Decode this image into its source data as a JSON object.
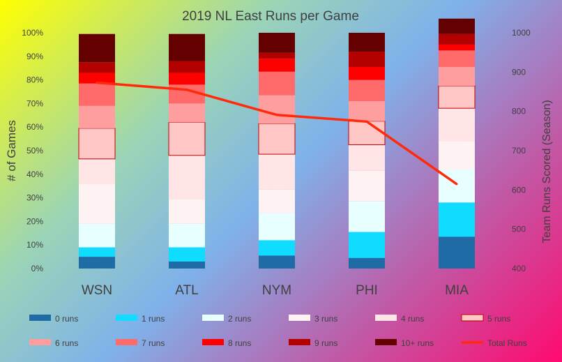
{
  "chart_data": {
    "type": "bar",
    "subtype": "100% stacked bar with line on secondary axis",
    "title": "2019 NL East Runs per Game",
    "xlabel": "",
    "ylabel": "# of Games",
    "y2label": "Team Runs Scored (Season)",
    "categories": [
      "WSN",
      "ATL",
      "NYM",
      "PHI",
      "MIA"
    ],
    "ylim": [
      0,
      100
    ],
    "y2lim": [
      400,
      1000
    ],
    "yticks": [
      "0%",
      "10%",
      "20%",
      "30%",
      "40%",
      "50%",
      "60%",
      "70%",
      "80%",
      "90%",
      "100%"
    ],
    "y2ticks": [
      "400",
      "500",
      "600",
      "700",
      "800",
      "900",
      "1000"
    ],
    "series": [
      {
        "name": "0 runs",
        "color": "#1f6ba5",
        "values": [
          5,
          3,
          5.5,
          4.5,
          13.5
        ]
      },
      {
        "name": "1 runs",
        "color": "#0fdcff",
        "values": [
          4,
          6,
          6.5,
          11,
          14.5
        ]
      },
      {
        "name": "2 runs",
        "color": "#e8ffff",
        "values": [
          10,
          10,
          11.5,
          13,
          14
        ]
      },
      {
        "name": "3 runs",
        "color": "#fff2f2",
        "values": [
          17,
          10.5,
          10,
          13,
          12
        ]
      },
      {
        "name": "4 runs",
        "color": "#ffe5e5",
        "values": [
          10.5,
          18.5,
          15,
          11,
          14
        ]
      },
      {
        "name": "5 runs",
        "color": "#ffc6c6",
        "values": [
          13,
          14,
          13,
          10,
          9.5
        ]
      },
      {
        "name": "6 runs",
        "color": "#ff9e9e",
        "values": [
          9.5,
          8,
          12,
          8.5,
          8
        ]
      },
      {
        "name": "7 runs",
        "color": "#ff6a6a",
        "values": [
          9.5,
          8,
          10,
          9,
          7
        ]
      },
      {
        "name": "8 runs",
        "color": "#ff0000",
        "values": [
          4.5,
          5,
          5.5,
          5.5,
          2.5
        ]
      },
      {
        "name": "9 runs",
        "color": "#b50000",
        "values": [
          4.5,
          5,
          2.5,
          6.5,
          4.5
        ]
      },
      {
        "name": "10+ runs",
        "color": "#640000",
        "values": [
          12,
          11.5,
          8.5,
          8,
          6.5
        ]
      }
    ],
    "line_series": {
      "name": "Total Runs",
      "color": "#ff2a0a",
      "axis": "secondary",
      "values": [
        873,
        855,
        791,
        774,
        615
      ]
    },
    "highlighted_series": "5 runs",
    "legend_position": "bottom",
    "grid": false
  }
}
